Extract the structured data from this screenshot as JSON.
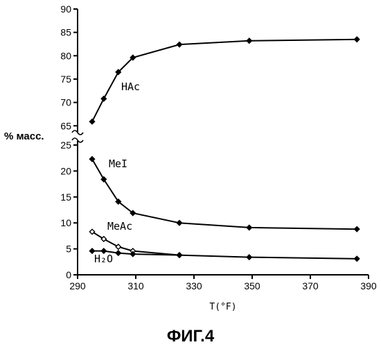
{
  "chart_data": {
    "type": "line",
    "title": "",
    "xlabel": "T(°F)",
    "ylabel": "% масс.",
    "caption": "ФИГ.4",
    "xlim": [
      290,
      390
    ],
    "xticks": [
      290,
      310,
      330,
      350,
      370,
      390
    ],
    "upper_panel": {
      "ylim": [
        64,
        90
      ],
      "yticks": [
        65,
        70,
        75,
        80,
        85,
        90
      ]
    },
    "lower_panel": {
      "ylim": [
        0,
        25
      ],
      "yticks": [
        0,
        5,
        10,
        15,
        20,
        25
      ]
    },
    "axis_break": true,
    "grid": false,
    "series": [
      {
        "name": "HAc",
        "panel": "upper",
        "marker": "filled-diamond",
        "x": [
          295,
          299,
          304,
          309,
          325,
          349,
          386
        ],
        "y": [
          65.9,
          70.8,
          76.5,
          79.6,
          82.4,
          83.2,
          83.5
        ]
      },
      {
        "name": "MeI",
        "panel": "lower",
        "marker": "filled-diamond",
        "x": [
          295,
          299,
          304,
          309,
          325,
          349,
          386
        ],
        "y": [
          22.3,
          18.4,
          14.1,
          11.9,
          10.0,
          9.1,
          8.8
        ]
      },
      {
        "name": "MeAc",
        "panel": "lower",
        "marker": "open-diamond",
        "x": [
          295,
          299,
          304,
          309,
          325
        ],
        "y": [
          8.3,
          6.9,
          5.4,
          4.6,
          3.8
        ]
      },
      {
        "name": "H₂O",
        "panel": "lower",
        "marker": "filled-diamond",
        "x": [
          295,
          299,
          304,
          309,
          325,
          349,
          386
        ],
        "y": [
          4.6,
          4.6,
          4.2,
          4.0,
          3.8,
          3.4,
          3.1
        ]
      }
    ]
  }
}
